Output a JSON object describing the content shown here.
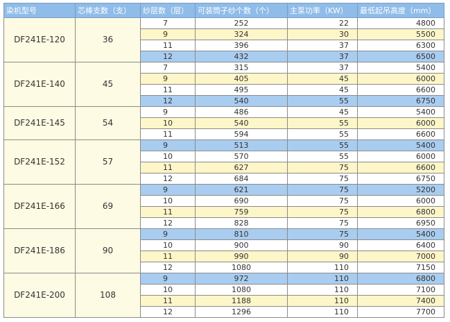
{
  "table": {
    "header": [
      "染机型号",
      "芯棒支数（支）",
      "纱层数（层）",
      "可装筒子纱个数（个）",
      "主泵功率（KW）",
      "最低起吊高度（mm）"
    ],
    "groups": [
      {
        "model": "DF241E-120",
        "cores": 36,
        "rows": [
          {
            "color": "white",
            "cells": [
              7,
              252,
              22,
              4800
            ]
          },
          {
            "color": "yellow",
            "cells": [
              9,
              324,
              30,
              5500
            ]
          },
          {
            "color": "white",
            "cells": [
              11,
              396,
              37,
              6300
            ]
          },
          {
            "color": "blue",
            "cells": [
              12,
              432,
              37,
              6500
            ]
          }
        ]
      },
      {
        "model": "DF241E-140",
        "cores": 45,
        "rows": [
          {
            "color": "white",
            "cells": [
              7,
              315,
              37,
              5400
            ]
          },
          {
            "color": "yellow",
            "cells": [
              9,
              405,
              45,
              6000
            ]
          },
          {
            "color": "white",
            "cells": [
              11,
              495,
              45,
              6600
            ]
          },
          {
            "color": "blue",
            "cells": [
              12,
              540,
              55,
              6750
            ]
          }
        ]
      },
      {
        "model": "DF241E-145",
        "cores": 54,
        "rows": [
          {
            "color": "white",
            "cells": [
              9,
              486,
              45,
              5400
            ]
          },
          {
            "color": "yellow",
            "cells": [
              10,
              540,
              55,
              6000
            ]
          },
          {
            "color": "white",
            "cells": [
              11,
              594,
              55,
              6600
            ]
          }
        ]
      },
      {
        "model": "DF241E-152",
        "cores": 57,
        "rows": [
          {
            "color": "blue",
            "cells": [
              9,
              513,
              55,
              5400
            ]
          },
          {
            "color": "white",
            "cells": [
              10,
              570,
              55,
              6000
            ]
          },
          {
            "color": "yellow",
            "cells": [
              11,
              627,
              75,
              6600
            ]
          },
          {
            "color": "white",
            "cells": [
              12,
              684,
              75,
              6750
            ]
          }
        ]
      },
      {
        "model": "DF241E-166",
        "cores": 69,
        "rows": [
          {
            "color": "blue",
            "cells": [
              9,
              621,
              75,
              5200
            ]
          },
          {
            "color": "white",
            "cells": [
              10,
              690,
              75,
              6000
            ]
          },
          {
            "color": "yellow",
            "cells": [
              11,
              759,
              75,
              6800
            ]
          },
          {
            "color": "white",
            "cells": [
              12,
              828,
              75,
              6950
            ]
          }
        ]
      },
      {
        "model": "DF241E-186",
        "cores": 90,
        "rows": [
          {
            "color": "blue",
            "cells": [
              9,
              810,
              75,
              5400
            ]
          },
          {
            "color": "white",
            "cells": [
              10,
              900,
              90,
              6400
            ]
          },
          {
            "color": "yellow",
            "cells": [
              11,
              990,
              90,
              7000
            ]
          },
          {
            "color": "white",
            "cells": [
              12,
              1080,
              110,
              7150
            ]
          }
        ]
      },
      {
        "model": "DF241E-200",
        "cores": 108,
        "rows": [
          {
            "color": "blue",
            "cells": [
              9,
              972,
              110,
              6800
            ]
          },
          {
            "color": "white",
            "cells": [
              10,
              1080,
              110,
              7100
            ]
          },
          {
            "color": "yellow",
            "cells": [
              11,
              1188,
              110,
              7400
            ]
          },
          {
            "color": "white",
            "cells": [
              12,
              1296,
              110,
              7700
            ]
          }
        ]
      }
    ]
  }
}
